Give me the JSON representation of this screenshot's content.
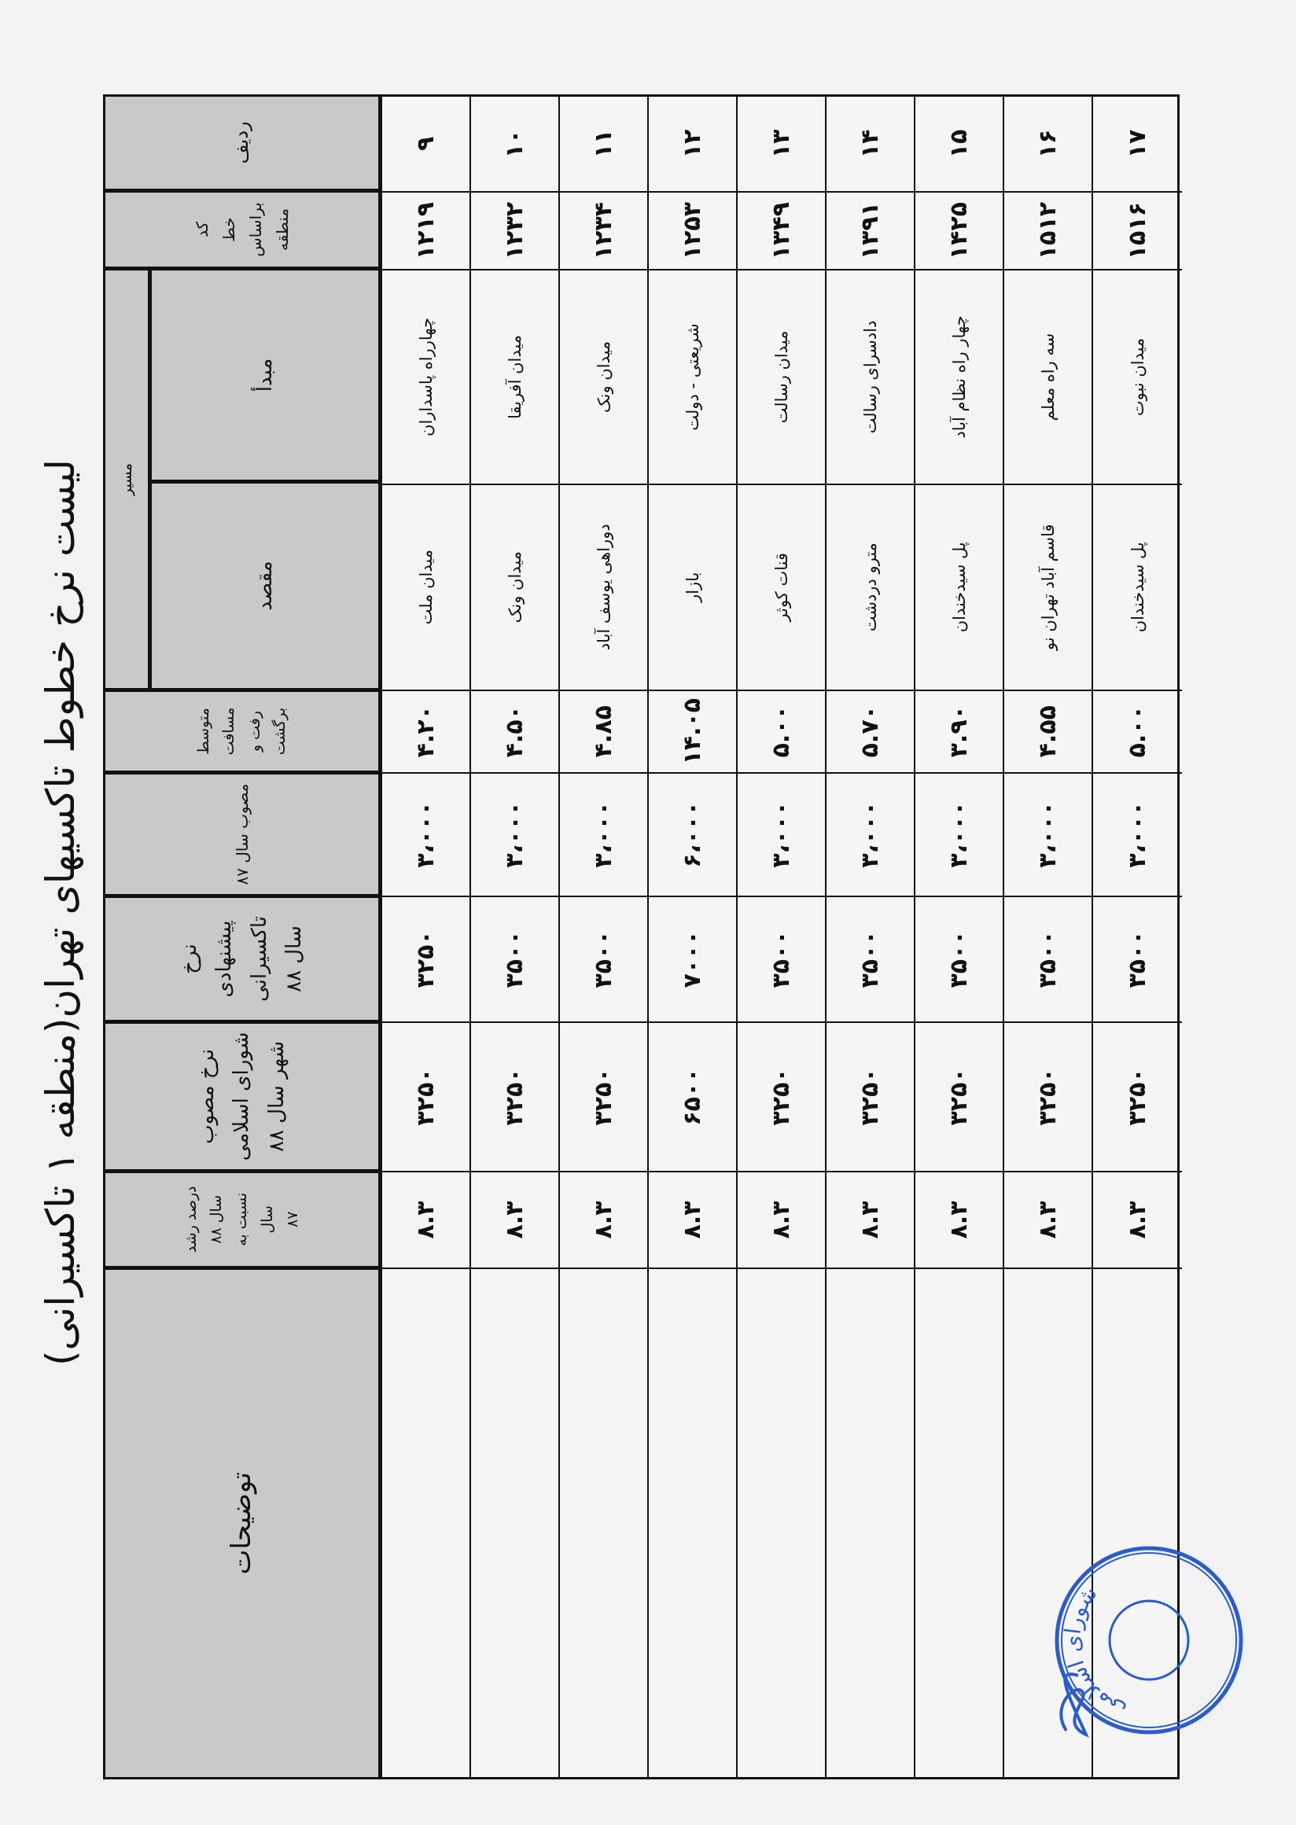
{
  "title": "لیست نرخ خطوط تاکسیهای تهران(منطقه ۱ تاکسیرانی)",
  "headers": {
    "row_no": "ردیف",
    "line_code": "کد\nخط\nبراساس\nمنطقه",
    "route": "مسیر",
    "origin": "مبدأ",
    "destination": "مقصد",
    "avg_distance": "متوسط\nمسافت\nرفت و\nبرگشت",
    "approved_87": "مصوب سال ۸۷",
    "proposed_88": "نرخ\nپیشنهادی\nتاکسیرانی\nسال ۸۸",
    "council_88": "نرخ مصوب\nشورای اسلامی\nشهر سال ۸۸",
    "growth": "درصد رشد\nسال ۸۸\nنسبت به سال\n۸۷",
    "notes": "توضیحات"
  },
  "rows": [
    {
      "row_no": "۹",
      "line_code": "۱۲۱۹",
      "origin": "چهارراه پاسداران",
      "destination": "میدان ملت",
      "avg_distance": "۴.۲۰",
      "approved_87": "۳،۰۰۰",
      "proposed_88": "۳۲۵۰",
      "council_88": "۳۲۵۰",
      "growth": "۸.۳",
      "notes": ""
    },
    {
      "row_no": "۱۰",
      "line_code": "۱۲۳۲",
      "origin": "میدان آفریقا",
      "destination": "میدان ونک",
      "avg_distance": "۴.۵۰",
      "approved_87": "۳،۰۰۰",
      "proposed_88": "۳۵۰۰",
      "council_88": "۳۲۵۰",
      "growth": "۸.۳",
      "notes": ""
    },
    {
      "row_no": "۱۱",
      "line_code": "۱۲۳۴",
      "origin": "میدان ونک",
      "destination": "دوراهی یوسف آباد",
      "avg_distance": "۴.۸۵",
      "approved_87": "۳،۰۰۰",
      "proposed_88": "۳۵۰۰",
      "council_88": "۳۲۵۰",
      "growth": "۸.۳",
      "notes": ""
    },
    {
      "row_no": "۱۲",
      "line_code": "۱۲۵۳",
      "origin": "شریعتی - دولت",
      "destination": "بازار",
      "avg_distance": "۱۴.۰۵",
      "approved_87": "۶،۰۰۰",
      "proposed_88": "۷۰۰۰",
      "council_88": "۶۵۰۰",
      "growth": "۸.۳",
      "notes": ""
    },
    {
      "row_no": "۱۳",
      "line_code": "۱۳۴۹",
      "origin": "میدان رسالت",
      "destination": "قنات کوثر",
      "avg_distance": "۵.۰۰",
      "approved_87": "۳،۰۰۰",
      "proposed_88": "۳۵۰۰",
      "council_88": "۳۲۵۰",
      "growth": "۸.۳",
      "notes": ""
    },
    {
      "row_no": "۱۴",
      "line_code": "۱۳۹۱",
      "origin": "دادسرای رسالت",
      "destination": "مترو دردشت",
      "avg_distance": "۵.۷۰",
      "approved_87": "۳،۰۰۰",
      "proposed_88": "۳۵۰۰",
      "council_88": "۳۲۵۰",
      "growth": "۸.۳",
      "notes": ""
    },
    {
      "row_no": "۱۵",
      "line_code": "۱۴۲۵",
      "origin": "چهار راه نظام آباد",
      "destination": "پل سیدخندان",
      "avg_distance": "۳.۹۰",
      "approved_87": "۳،۰۰۰",
      "proposed_88": "۳۵۰۰",
      "council_88": "۳۲۵۰",
      "growth": "۸.۳",
      "notes": ""
    },
    {
      "row_no": "۱۶",
      "line_code": "۱۵۱۲",
      "origin": "سه راه معلم",
      "destination": "قاسم آباد تهران نو",
      "avg_distance": "۴.۵۵",
      "approved_87": "۳،۰۰۰",
      "proposed_88": "۳۵۰۰",
      "council_88": "۳۲۵۰",
      "growth": "۸.۳",
      "notes": ""
    },
    {
      "row_no": "۱۷",
      "line_code": "۱۵۱۶",
      "origin": "میدان نبوت",
      "destination": "پل سیدخندان",
      "avg_distance": "۵.۰۰",
      "approved_87": "۳،۰۰۰",
      "proposed_88": "۳۵۰۰",
      "council_88": "۳۲۵۰",
      "growth": "۸.۳",
      "notes": ""
    }
  ],
  "stamp": {
    "text": "شورای اسلامی",
    "color": "#2d5cc8"
  },
  "colors": {
    "header_bg": "#c9c9c9",
    "paper": "#f1f2f1"
  }
}
